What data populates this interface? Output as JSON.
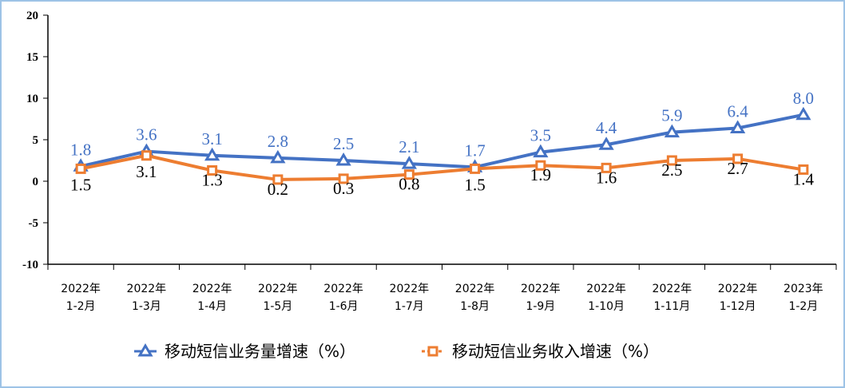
{
  "chart_data": {
    "type": "line",
    "categories": [
      [
        "2022年",
        "1-2月"
      ],
      [
        "2022年",
        "1-3月"
      ],
      [
        "2022年",
        "1-4月"
      ],
      [
        "2022年",
        "1-5月"
      ],
      [
        "2022年",
        "1-6月"
      ],
      [
        "2022年",
        "1-7月"
      ],
      [
        "2022年",
        "1-8月"
      ],
      [
        "2022年",
        "1-9月"
      ],
      [
        "2022年",
        "1-10月"
      ],
      [
        "2022年",
        "1-11月"
      ],
      [
        "2022年",
        "1-12月"
      ],
      [
        "2023年",
        "1-2月"
      ]
    ],
    "ylim": [
      -10,
      20
    ],
    "yticks": [
      "20",
      "15",
      "10",
      "5",
      "0",
      "-5",
      "-10"
    ],
    "grid": false,
    "legend_position": "bottom",
    "series": [
      {
        "name": "移动短信业务量增速（%）",
        "color": "#4472c4",
        "marker": "triangle",
        "values": [
          1.8,
          3.6,
          3.1,
          2.8,
          2.5,
          2.1,
          1.7,
          3.5,
          4.4,
          5.9,
          6.4,
          8.0
        ],
        "labels": [
          "1.8",
          "3.6",
          "3.1",
          "2.8",
          "2.5",
          "2.1",
          "1.7",
          "3.5",
          "4.4",
          "5.9",
          "6.4",
          "8.0"
        ]
      },
      {
        "name": "移动短信业务收入增速（%）",
        "color": "#ed7d31",
        "marker": "square",
        "values": [
          1.5,
          3.1,
          1.3,
          0.2,
          0.3,
          0.8,
          1.5,
          1.9,
          1.6,
          2.5,
          2.7,
          1.4
        ],
        "labels": [
          "1.5",
          "3.1",
          "1.3",
          "0.2",
          "0.3",
          "0.8",
          "1.5",
          "1.9",
          "1.6",
          "2.5",
          "2.7",
          "1.4"
        ]
      }
    ]
  }
}
